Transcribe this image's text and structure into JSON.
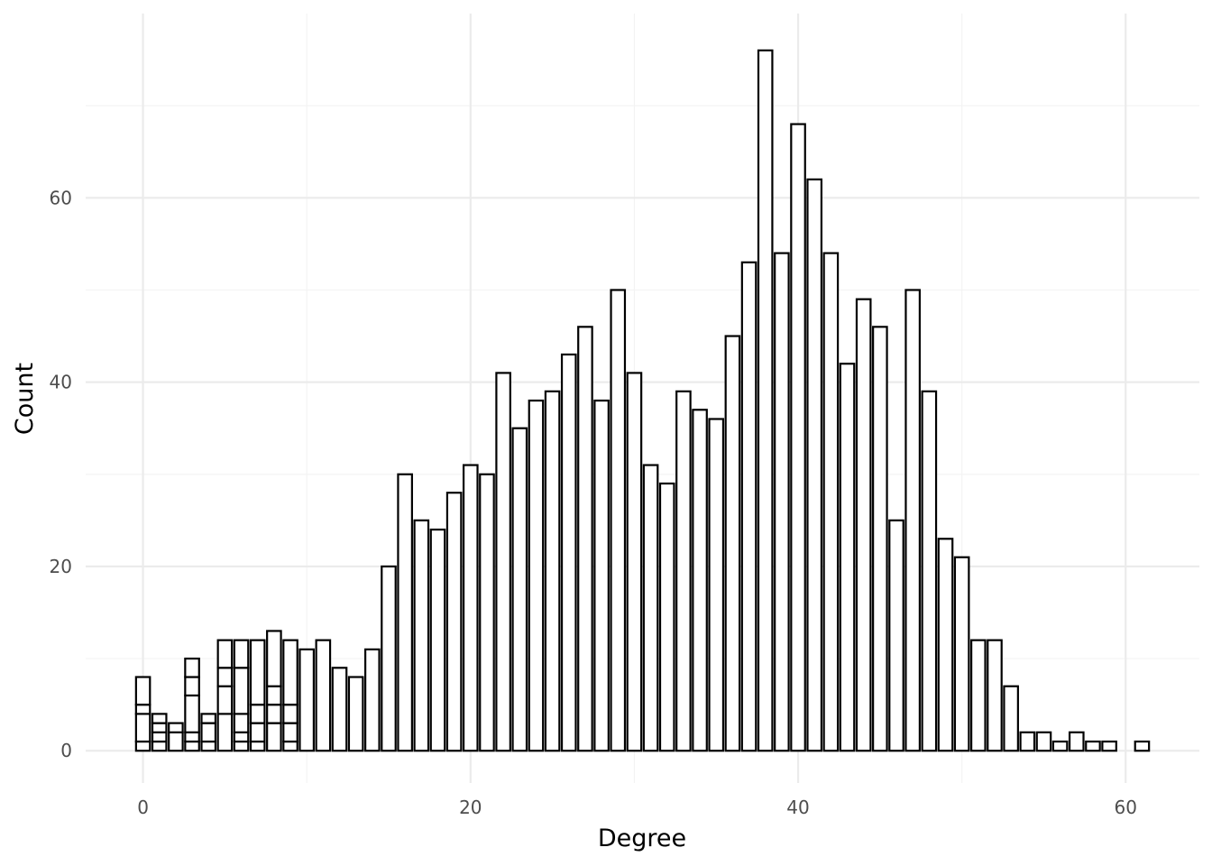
{
  "chart_data": {
    "type": "bar",
    "xlabel": "Degree",
    "ylabel": "Count",
    "xlim": [
      -3.5,
      64.5
    ],
    "ylim": [
      -3.5,
      80
    ],
    "x_ticks": [
      0,
      20,
      40,
      60
    ],
    "x_tick_labels": [
      "0",
      "20",
      "40",
      "60"
    ],
    "y_ticks": [
      0,
      20,
      40,
      60
    ],
    "y_tick_labels": [
      "0",
      "20",
      "40",
      "60"
    ],
    "bar_width": 0.85,
    "grid": true,
    "legend": "none",
    "stacked_bars": [
      {
        "x": 0,
        "segments": [
          1,
          3,
          1,
          3
        ]
      },
      {
        "x": 1,
        "segments": [
          1,
          1,
          1,
          1
        ]
      },
      {
        "x": 2,
        "segments": [
          2,
          1
        ]
      },
      {
        "x": 3,
        "segments": [
          1,
          1,
          4,
          2,
          2
        ]
      },
      {
        "x": 4,
        "segments": [
          1,
          2,
          1
        ]
      },
      {
        "x": 5,
        "segments": [
          4,
          3,
          2,
          3
        ]
      },
      {
        "x": 6,
        "segments": [
          1,
          1,
          2,
          5,
          3
        ]
      },
      {
        "x": 7,
        "segments": [
          1,
          2,
          2,
          7
        ]
      },
      {
        "x": 8,
        "segments": [
          3,
          2,
          2,
          6
        ]
      },
      {
        "x": 9,
        "segments": [
          1,
          2,
          2,
          7
        ]
      }
    ],
    "x": [
      10,
      11,
      12,
      13,
      14,
      15,
      16,
      17,
      18,
      19,
      20,
      21,
      22,
      23,
      24,
      25,
      26,
      27,
      28,
      29,
      30,
      31,
      32,
      33,
      34,
      35,
      36,
      37,
      38,
      39,
      40,
      41,
      42,
      43,
      44,
      45,
      46,
      47,
      48,
      49,
      50,
      51,
      52,
      53,
      54,
      55,
      56,
      57,
      58,
      59,
      61
    ],
    "values": [
      11,
      12,
      9,
      8,
      11,
      20,
      30,
      25,
      24,
      28,
      31,
      30,
      41,
      35,
      38,
      39,
      43,
      46,
      38,
      50,
      41,
      31,
      29,
      39,
      37,
      36,
      45,
      53,
      76,
      54,
      68,
      62,
      54,
      42,
      49,
      46,
      25,
      50,
      39,
      23,
      21,
      12,
      12,
      7,
      2,
      2,
      1,
      2,
      1,
      1,
      1
    ]
  }
}
